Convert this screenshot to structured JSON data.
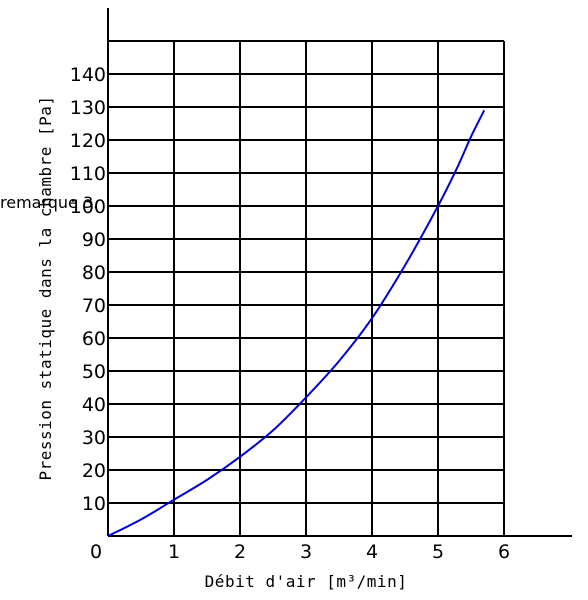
{
  "chart_data": {
    "type": "line",
    "title": "",
    "xlabel": "Débit d'air [m³/min]",
    "ylabel": "Pression statique dans la chambre [Pa]",
    "annotation": "remarque 3.",
    "xlim": [
      0,
      7
    ],
    "ylim": [
      0,
      150
    ],
    "xticks": [
      "0",
      "1",
      "2",
      "3",
      "4",
      "5",
      "6"
    ],
    "yticks": [
      "10",
      "20",
      "30",
      "40",
      "50",
      "60",
      "70",
      "80",
      "90",
      "100",
      "110",
      "120",
      "130",
      "140"
    ],
    "grid": true,
    "series": [
      {
        "color": "#0000cc",
        "x": [
          0,
          0.5,
          1.0,
          1.5,
          2.0,
          2.5,
          3.0,
          3.5,
          4.0,
          4.5,
          5.0,
          5.3,
          5.5,
          5.7
        ],
        "y": [
          0,
          5,
          11,
          17,
          24,
          32,
          42,
          53,
          66,
          82,
          100,
          112,
          121,
          129
        ]
      }
    ]
  }
}
